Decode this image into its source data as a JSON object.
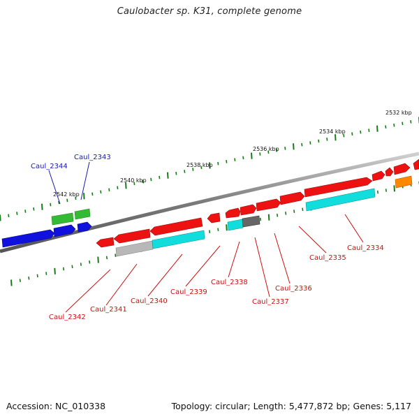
{
  "title": "Caulobacter sp. K31, complete genome",
  "footer": {
    "accession": "Accession: NC_010338",
    "summary": "Topology: circular; Length: 5,477,872 bp; Genes: 5,117"
  },
  "colors": {
    "backbone": "#888888",
    "tick": "#1a7a1a",
    "label_upper": "#1a1aaa",
    "label_lower": "#cc1111",
    "red": "#ee1111",
    "blue": "#1111dd",
    "green": "#33bb33",
    "cyan": "#11dddd",
    "gray": "#b8b8b8",
    "darkgray": "#666666",
    "orange": "#ff8800"
  },
  "kbp_labels": [
    "2532 kbp",
    "2534 kbp",
    "2536 kbp",
    "2538 kbp",
    "2540 kbp",
    "2542 kbp"
  ],
  "gene_labels_upper": [
    "Caul_2344",
    "Caul_2343"
  ],
  "gene_labels_lower": [
    "Caul_2334",
    "Caul_2335",
    "Caul_2336",
    "Caul_2337",
    "Caul_2338",
    "Caul_2339",
    "Caul_2340",
    "Caul_2341",
    "Caul_2342"
  ]
}
